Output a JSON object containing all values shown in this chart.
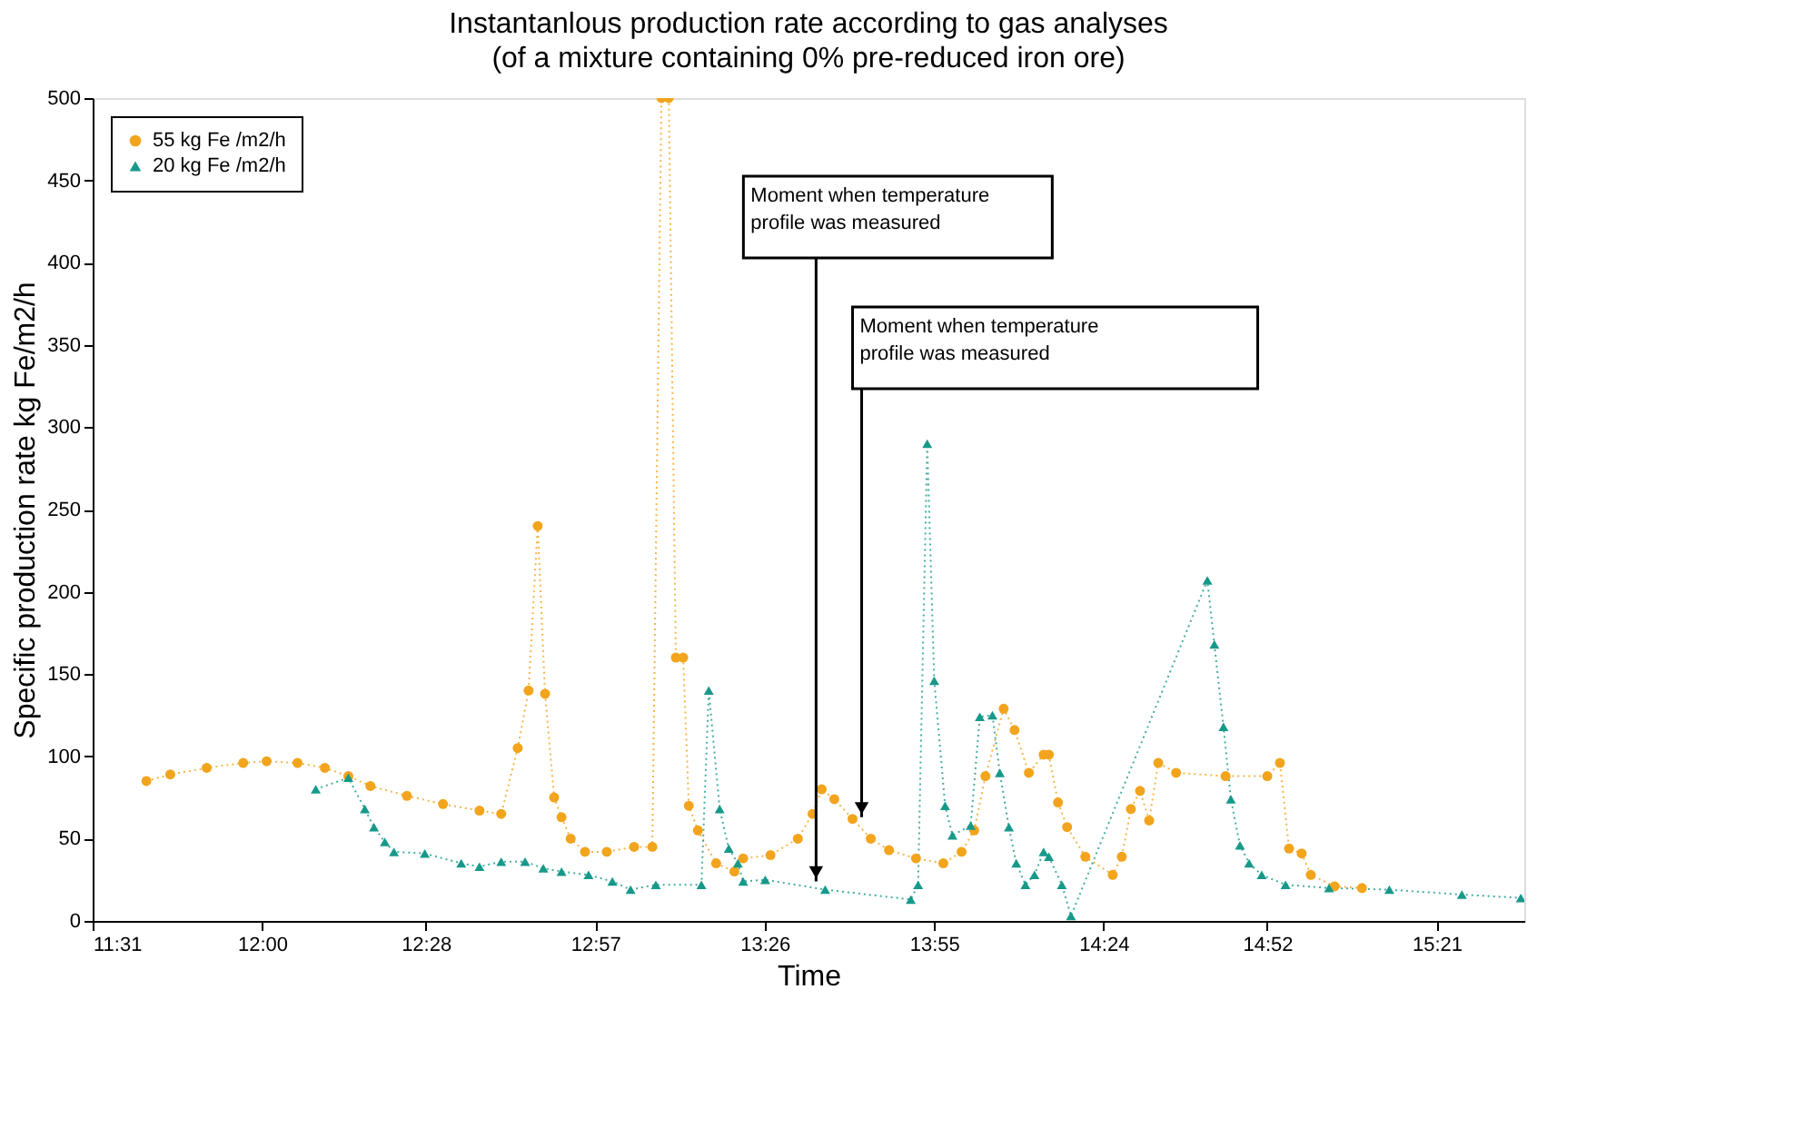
{
  "chart_data": {
    "type": "line",
    "title": "Instantanlous production rate according to gas analyses",
    "subtitle": "(of a mixture containing 0% pre-reduced iron ore)",
    "xlabel": "Time",
    "ylabel": "Specific production rate kg Fe/m2/h",
    "xlim": [
      11.5167,
      15.6
    ],
    "xticks": [
      {
        "value": 11.5167,
        "label": "11:31"
      },
      {
        "value": 12.0,
        "label": "12:00"
      },
      {
        "value": 12.4667,
        "label": "12:28"
      },
      {
        "value": 12.95,
        "label": "12:57"
      },
      {
        "value": 13.4333,
        "label": "13:26"
      },
      {
        "value": 13.9167,
        "label": "13:55"
      },
      {
        "value": 14.4,
        "label": "14:24"
      },
      {
        "value": 14.8667,
        "label": "14:52"
      },
      {
        "value": 15.35,
        "label": "15:21"
      }
    ],
    "ylim": [
      0,
      500
    ],
    "yticks": [
      0,
      50,
      100,
      150,
      200,
      250,
      300,
      350,
      400,
      450,
      500
    ],
    "grid": false,
    "legend": "top left",
    "line_style": "dotted",
    "series": [
      {
        "name": "55 kg Fe /m2/h",
        "color": "#f2a41c",
        "marker": "circle",
        "x": [
          11.67,
          11.738,
          11.842,
          11.946,
          12.013,
          12.101,
          12.179,
          12.246,
          12.309,
          12.413,
          12.516,
          12.62,
          12.682,
          12.729,
          12.76,
          12.786,
          12.807,
          12.833,
          12.854,
          12.88,
          12.921,
          12.983,
          13.061,
          13.113,
          13.139,
          13.16,
          13.18,
          13.201,
          13.217,
          13.243,
          13.295,
          13.347,
          13.372,
          13.45,
          13.528,
          13.57,
          13.596,
          13.632,
          13.684,
          13.736,
          13.788,
          13.865,
          13.943,
          13.995,
          14.031,
          14.063,
          14.115,
          14.146,
          14.187,
          14.229,
          14.244,
          14.27,
          14.296,
          14.348,
          14.426,
          14.452,
          14.478,
          14.504,
          14.53,
          14.556,
          14.607,
          14.748,
          14.867,
          14.903,
          14.929,
          14.965,
          14.991,
          15.059,
          15.137
        ],
        "values": [
          85,
          89,
          93,
          96,
          97,
          96,
          93,
          88,
          82,
          76,
          71,
          67,
          65,
          105,
          140,
          240,
          138,
          75,
          63,
          50,
          42,
          42,
          45,
          45,
          500,
          500,
          160,
          160,
          70,
          55,
          35,
          30,
          38,
          40,
          50,
          65,
          80,
          74,
          62,
          50,
          43,
          38,
          35,
          42,
          55,
          88,
          129,
          116,
          90,
          101,
          101,
          72,
          57,
          39,
          28,
          39,
          68,
          79,
          61,
          96,
          90,
          88,
          88,
          96,
          44,
          41,
          28,
          21,
          20
        ]
      },
      {
        "name": "20 kg Fe /m2/h",
        "color": "#17998a",
        "marker": "triangle",
        "x": [
          12.153,
          12.246,
          12.293,
          12.319,
          12.35,
          12.376,
          12.464,
          12.568,
          12.62,
          12.682,
          12.75,
          12.802,
          12.854,
          12.931,
          12.999,
          13.051,
          13.123,
          13.253,
          13.274,
          13.305,
          13.331,
          13.357,
          13.372,
          13.435,
          13.606,
          13.85,
          13.871,
          13.897,
          13.917,
          13.948,
          13.969,
          14.021,
          14.047,
          14.083,
          14.104,
          14.13,
          14.151,
          14.177,
          14.203,
          14.229,
          14.244,
          14.281,
          14.307,
          14.696,
          14.716,
          14.742,
          14.763,
          14.789,
          14.815,
          14.851,
          14.919,
          15.043,
          15.215,
          15.422,
          15.59
        ],
        "values": [
          80,
          87,
          68,
          57,
          48,
          42,
          41,
          35,
          33,
          36,
          36,
          32,
          30,
          28,
          24,
          19,
          22,
          22,
          140,
          68,
          44,
          35,
          24,
          25,
          19,
          13,
          22,
          290,
          146,
          70,
          52,
          58,
          124,
          125,
          90,
          57,
          35,
          22,
          28,
          42,
          39,
          22,
          3,
          207,
          168,
          118,
          74,
          46,
          35,
          28,
          22,
          20,
          19,
          16,
          14
        ]
      }
    ],
    "annotations": [
      {
        "text": "Moment when temperature\nprofile was measured",
        "x": 13.58,
        "y": 24
      },
      {
        "text": "Moment when temperature\nprofile was measured",
        "x": 13.71,
        "y": 63
      }
    ]
  }
}
